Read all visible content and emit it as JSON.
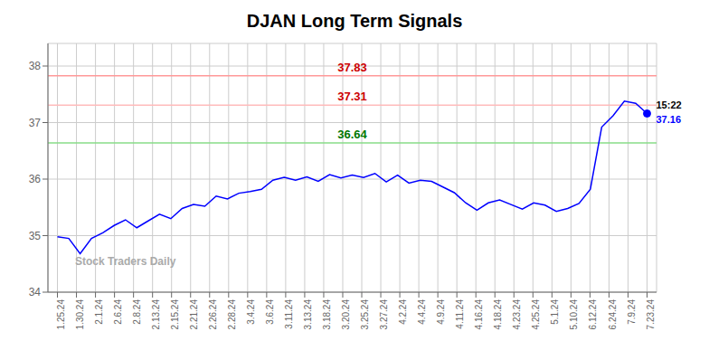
{
  "chart_data": {
    "type": "line",
    "title": "DJAN Long Term Signals",
    "color": "blue",
    "x": [
      0,
      0.596154,
      1.192308,
      1.788462,
      2.384615,
      2.980769,
      3.576923,
      4.173077,
      4.769231,
      5.365385,
      5.961538,
      6.557692,
      7.153846,
      7.75,
      8.346154,
      8.942308,
      9.538462,
      10.134615,
      10.730769,
      11.326923,
      11.923077,
      12.519231,
      13.115385,
      13.711538,
      14.307692,
      14.903846,
      15.5,
      16.096154,
      16.692308,
      17.288462,
      17.884615,
      18.480769,
      19.076923,
      19.673077,
      20.269231,
      20.865385,
      21.461538,
      22.057692,
      22.653846,
      23.25,
      23.846154,
      24.442308,
      25.038462,
      25.634615,
      26.230769,
      26.826923,
      27.423077,
      28.019231,
      28.615385,
      29.211538,
      29.807692,
      30.403846,
      31
    ],
    "values": [
      34.98,
      34.95,
      34.68,
      34.95,
      35.05,
      35.18,
      35.28,
      35.14,
      35.26,
      35.38,
      35.3,
      35.48,
      35.55,
      35.52,
      35.7,
      35.65,
      35.75,
      35.78,
      35.82,
      35.98,
      36.03,
      35.98,
      36.04,
      35.96,
      36.08,
      36.02,
      36.07,
      36.03,
      36.1,
      35.95,
      36.07,
      35.93,
      35.98,
      35.96,
      35.86,
      35.76,
      35.58,
      35.45,
      35.58,
      35.63,
      35.55,
      35.47,
      35.58,
      35.54,
      35.43,
      35.48,
      35.57,
      35.82,
      36.92,
      37.12,
      37.38,
      37.34,
      37.16
    ],
    "xlim": [
      -0.5,
      31.5
    ],
    "xticks": [
      {
        "value": 0,
        "label": "1.25.24"
      },
      {
        "value": 1,
        "label": "1.30.24"
      },
      {
        "value": 2,
        "label": "2.1.24"
      },
      {
        "value": 3,
        "label": "2.6.24"
      },
      {
        "value": 4,
        "label": "2.8.24"
      },
      {
        "value": 5,
        "label": "2.13.24"
      },
      {
        "value": 6,
        "label": "2.15.24"
      },
      {
        "value": 7,
        "label": "2.21.24"
      },
      {
        "value": 8,
        "label": "2.26.24"
      },
      {
        "value": 9,
        "label": "2.28.24"
      },
      {
        "value": 10,
        "label": "3.4.24"
      },
      {
        "value": 11,
        "label": "3.6.24"
      },
      {
        "value": 12,
        "label": "3.11.24"
      },
      {
        "value": 13,
        "label": "3.13.24"
      },
      {
        "value": 14,
        "label": "3.18.24"
      },
      {
        "value": 15,
        "label": "3.20.24"
      },
      {
        "value": 16,
        "label": "3.25.24"
      },
      {
        "value": 17,
        "label": "3.27.24"
      },
      {
        "value": 18,
        "label": "4.2.24"
      },
      {
        "value": 19,
        "label": "4.4.24"
      },
      {
        "value": 20,
        "label": "4.9.24"
      },
      {
        "value": 21,
        "label": "4.11.24"
      },
      {
        "value": 22,
        "label": "4.16.24"
      },
      {
        "value": 23,
        "label": "4.18.24"
      },
      {
        "value": 24,
        "label": "4.23.24"
      },
      {
        "value": 25,
        "label": "4.25.24"
      },
      {
        "value": 26,
        "label": "5.1.24"
      },
      {
        "value": 27,
        "label": "5.10.24"
      },
      {
        "value": 28,
        "label": "6.12.24"
      },
      {
        "value": 29,
        "label": "6.24.24"
      },
      {
        "value": 30,
        "label": "7.9.24"
      },
      {
        "value": 31,
        "label": "7.23.24"
      }
    ],
    "ylim": [
      34,
      38.4
    ],
    "yticks": [
      34,
      35,
      36,
      37,
      38
    ],
    "grid": true,
    "hlines": [
      {
        "y": 37.83,
        "color": "#ff9999",
        "label": "37.83",
        "label_color": "#cc0000"
      },
      {
        "y": 37.31,
        "color": "#ffbbbb",
        "label": "37.31",
        "label_color": "#cc0000"
      },
      {
        "y": 36.64,
        "color": "#88dd88",
        "label": "36.64",
        "label_color": "#007700"
      }
    ],
    "last_point": {
      "time": "15:22",
      "price": 37.16,
      "color": "blue"
    },
    "watermark": "Stock Traders Daily"
  }
}
